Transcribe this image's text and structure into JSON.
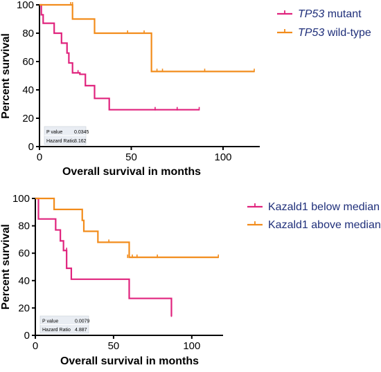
{
  "chart_data": [
    {
      "type": "line",
      "subtype": "kaplan-meier-step",
      "xlabel": "Overall survival in months",
      "ylabel": "Percent survival",
      "xlim": [
        0,
        120
      ],
      "ylim": [
        0,
        100
      ],
      "xticks": [
        "0",
        "50",
        "100"
      ],
      "yticks": [
        "0",
        "20",
        "40",
        "60",
        "80",
        "100"
      ],
      "grid": false,
      "legend_position": "right",
      "series": [
        {
          "name_italic": "TP53",
          "name_rest": " mutant",
          "color": "#e0237d",
          "x": [
            0,
            1,
            2,
            8,
            12,
            15,
            16,
            18,
            22,
            25,
            30,
            38,
            87
          ],
          "y": [
            100,
            93,
            87,
            80,
            73,
            66,
            59,
            52,
            51,
            43,
            34,
            26,
            26
          ],
          "censor_x": [
            15,
            21,
            63,
            75,
            87
          ],
          "censor_y": [
            68,
            52,
            26,
            26,
            26
          ]
        },
        {
          "name_italic": "TP53",
          "name_rest": " wild-type",
          "color": "#f28c1b",
          "x": [
            0,
            18,
            30,
            60,
            61,
            117
          ],
          "y": [
            100,
            90,
            80,
            80,
            53,
            53
          ],
          "censor_x": [
            17,
            18,
            48,
            57,
            64,
            67,
            90,
            117
          ],
          "censor_y": [
            100,
            100,
            80,
            80,
            53,
            53,
            53,
            53
          ]
        }
      ],
      "stats": {
        "p_label": "P value",
        "p_value": "0.0345",
        "hr_label": "Hazard Ratio",
        "hr_value": "3.162"
      }
    },
    {
      "type": "line",
      "subtype": "kaplan-meier-step",
      "xlabel": "Overall survival in months",
      "ylabel": "Percent survival",
      "xlim": [
        0,
        120
      ],
      "ylim": [
        0,
        100
      ],
      "xticks": [
        "0",
        "50",
        "100"
      ],
      "yticks": [
        "0",
        "20",
        "40",
        "60",
        "80",
        "100"
      ],
      "grid": false,
      "legend_position": "right",
      "series": [
        {
          "name": "Kazald1 below median",
          "color": "#e0237d",
          "x": [
            0,
            2,
            13,
            16,
            18,
            20,
            23,
            60,
            87
          ],
          "y": [
            100,
            85,
            77,
            69,
            62,
            49,
            41,
            27,
            14
          ],
          "censor_x": [
            18,
            20,
            87
          ],
          "censor_y": [
            62,
            62,
            14
          ]
        },
        {
          "name": "Kazald1 above median",
          "color": "#f28c1b",
          "x": [
            0,
            12,
            30,
            31,
            40,
            49,
            60,
            117
          ],
          "y": [
            100,
            92,
            84,
            76,
            68,
            68,
            57,
            57
          ],
          "censor_x": [
            12,
            47,
            59,
            62,
            65,
            78,
            117
          ],
          "censor_y": [
            92,
            68,
            57,
            57,
            57,
            57,
            57
          ]
        }
      ],
      "stats": {
        "p_label": "P value",
        "p_value": "0.0079",
        "hr_label": "Hazard Ratio",
        "hr_value": "4.887"
      }
    }
  ]
}
